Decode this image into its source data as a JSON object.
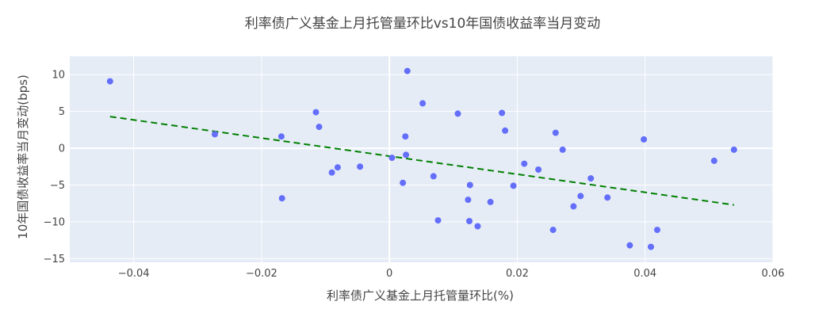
{
  "chart_data": {
    "type": "scatter",
    "title": "利率债广义基金上月托管量环比vs10年国债收益率当月变动",
    "xlabel": "利率债广义基金上月托管量环比(%)",
    "ylabel": "10年国债收益率当月变动(bps)",
    "xlim": [
      -0.05,
      0.06
    ],
    "ylim": [
      -15.5,
      12.5
    ],
    "x_ticks": [
      -0.04,
      -0.02,
      0,
      0.02,
      0.04,
      0.06
    ],
    "x_tick_labels": [
      "−0.04",
      "−0.02",
      "0",
      "0.02",
      "0.04",
      "0.06"
    ],
    "y_ticks": [
      -15,
      -10,
      -5,
      0,
      5,
      10
    ],
    "y_tick_labels": [
      "−15",
      "−10",
      "−5",
      "0",
      "5",
      "10"
    ],
    "grid": true,
    "legend": "none",
    "colors": {
      "plot_background": "#e5ecf6",
      "points": "#636efa",
      "trendline": "#008000"
    },
    "points": [
      {
        "x": -0.0437,
        "y": 9.1
      },
      {
        "x": -0.0273,
        "y": 1.9
      },
      {
        "x": -0.0169,
        "y": 1.6
      },
      {
        "x": -0.0168,
        "y": -6.8
      },
      {
        "x": -0.0115,
        "y": 4.9
      },
      {
        "x": -0.011,
        "y": 2.9
      },
      {
        "x": -0.009,
        "y": -3.3
      },
      {
        "x": -0.0081,
        "y": -2.6
      },
      {
        "x": -0.0046,
        "y": -2.5
      },
      {
        "x": 0.0004,
        "y": -1.3
      },
      {
        "x": 0.0021,
        "y": -4.7
      },
      {
        "x": 0.0025,
        "y": 1.6
      },
      {
        "x": 0.0026,
        "y": -0.9
      },
      {
        "x": 0.0028,
        "y": 10.5
      },
      {
        "x": 0.0052,
        "y": 6.1
      },
      {
        "x": 0.0069,
        "y": -3.8
      },
      {
        "x": 0.0076,
        "y": -9.8
      },
      {
        "x": 0.0107,
        "y": 4.7
      },
      {
        "x": 0.0123,
        "y": -7.0
      },
      {
        "x": 0.0125,
        "y": -9.9
      },
      {
        "x": 0.0126,
        "y": -5.0
      },
      {
        "x": 0.0138,
        "y": -10.6
      },
      {
        "x": 0.0158,
        "y": -7.3
      },
      {
        "x": 0.0176,
        "y": 4.8
      },
      {
        "x": 0.0181,
        "y": 2.4
      },
      {
        "x": 0.0194,
        "y": -5.1
      },
      {
        "x": 0.0211,
        "y": -2.1
      },
      {
        "x": 0.0233,
        "y": -2.9
      },
      {
        "x": 0.0256,
        "y": -11.1
      },
      {
        "x": 0.026,
        "y": 2.1
      },
      {
        "x": 0.0271,
        "y": -0.2
      },
      {
        "x": 0.0288,
        "y": -7.9
      },
      {
        "x": 0.0299,
        "y": -6.5
      },
      {
        "x": 0.0315,
        "y": -4.1
      },
      {
        "x": 0.0341,
        "y": -6.7
      },
      {
        "x": 0.0376,
        "y": -13.2
      },
      {
        "x": 0.0398,
        "y": 1.2
      },
      {
        "x": 0.0409,
        "y": -13.4
      },
      {
        "x": 0.0419,
        "y": -11.1
      },
      {
        "x": 0.0508,
        "y": -1.7
      },
      {
        "x": 0.0539,
        "y": -0.2
      }
    ],
    "trendline": {
      "x": [
        -0.0437,
        0.0539
      ],
      "y": [
        4.3,
        -7.7
      ]
    }
  }
}
